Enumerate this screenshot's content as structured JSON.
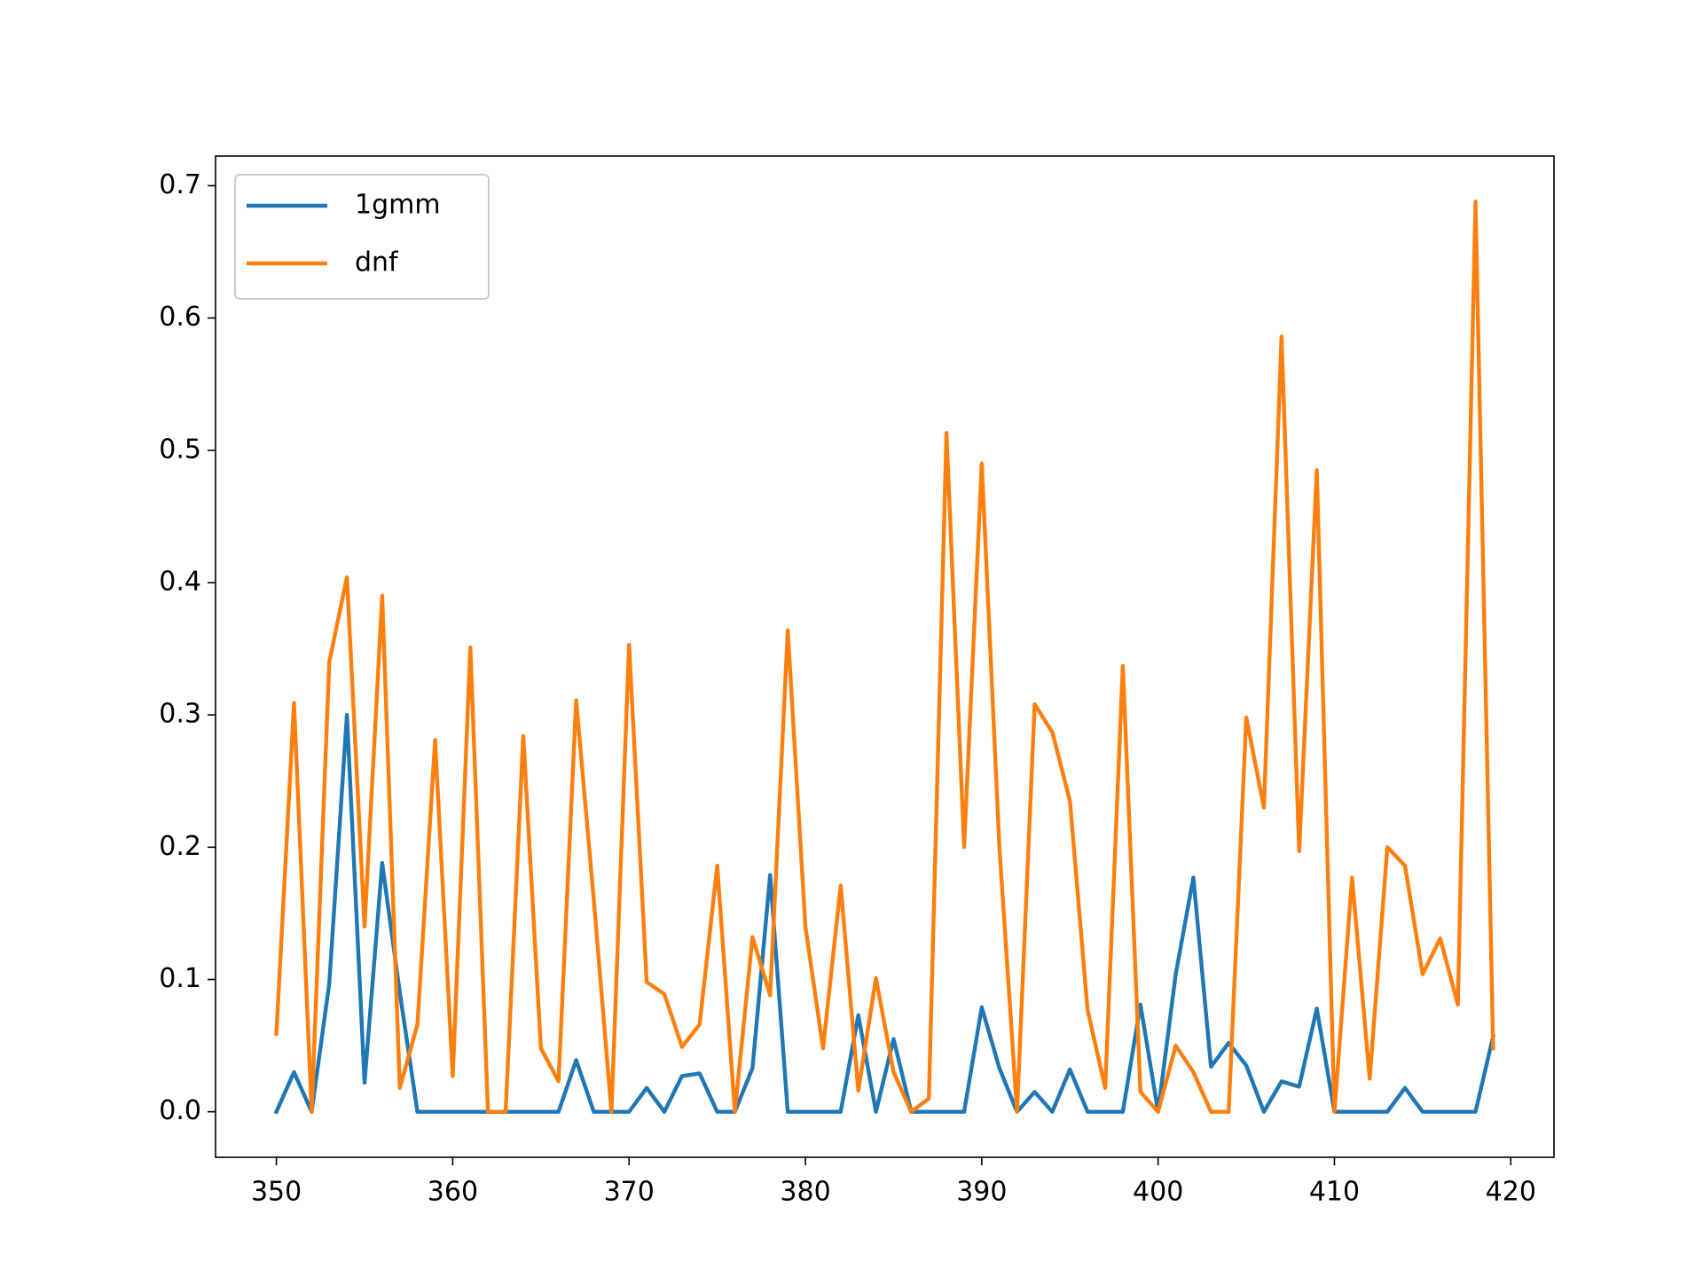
{
  "chart_data": {
    "type": "line",
    "x": [
      350,
      351,
      352,
      353,
      354,
      355,
      356,
      357,
      358,
      359,
      360,
      361,
      362,
      363,
      364,
      365,
      366,
      367,
      368,
      369,
      370,
      371,
      372,
      373,
      374,
      375,
      376,
      377,
      378,
      379,
      380,
      381,
      382,
      383,
      384,
      385,
      386,
      387,
      388,
      389,
      390,
      391,
      392,
      393,
      394,
      395,
      396,
      397,
      398,
      399,
      400,
      401,
      402,
      403,
      404,
      405,
      406,
      407,
      408,
      409,
      410,
      411,
      412,
      413,
      414,
      415,
      416,
      417,
      418,
      419
    ],
    "series": [
      {
        "name": "1gmm",
        "color": "#1f77b4",
        "values": [
          0,
          0.03,
          0,
          0.097,
          0.3,
          0.022,
          0.188,
          0.09,
          0,
          0,
          0,
          0,
          0,
          0,
          0,
          0,
          0,
          0.039,
          0,
          0,
          0,
          0.018,
          0,
          0.027,
          0.029,
          0,
          0,
          0.033,
          0.179,
          0,
          0,
          0,
          0,
          0.073,
          0,
          0.055,
          0,
          0,
          0,
          0,
          0.079,
          0.033,
          0,
          0.015,
          0,
          0.032,
          0,
          0,
          0,
          0.081,
          0,
          0.104,
          0.177,
          0.034,
          0.052,
          0.035,
          0,
          0.023,
          0.019,
          0.078,
          0,
          0,
          0,
          0,
          0.018,
          0,
          0,
          0,
          0,
          0.057
        ]
      },
      {
        "name": "dnf",
        "color": "#ff7f0e",
        "values": [
          0.059,
          0.309,
          0,
          0.34,
          0.404,
          0.14,
          0.39,
          0.018,
          0.066,
          0.281,
          0.027,
          0.351,
          0,
          0,
          0.284,
          0.048,
          0.023,
          0.311,
          0.16,
          0,
          0.353,
          0.098,
          0.089,
          0.049,
          0.066,
          0.186,
          0,
          0.132,
          0.088,
          0.364,
          0.14,
          0.048,
          0.171,
          0.016,
          0.101,
          0.03,
          0,
          0.01,
          0.513,
          0.2,
          0.49,
          0.2,
          0,
          0.308,
          0.287,
          0.235,
          0.077,
          0.018,
          0.337,
          0.015,
          0,
          0.05,
          0.03,
          0,
          0,
          0.298,
          0.23,
          0.586,
          0.197,
          0.485,
          0,
          0.177,
          0.025,
          0.2,
          0.186,
          0.104,
          0.131,
          0.081,
          0.688,
          0.048
        ]
      }
    ],
    "xlim": [
      346.55,
      422.45
    ],
    "xticks": [
      350,
      360,
      370,
      380,
      390,
      400,
      410,
      420
    ],
    "ylim": [
      -0.0344,
      0.7224
    ],
    "yticks": [
      {
        "value": 0,
        "label": "0.0"
      },
      0.1,
      0.2,
      0.3,
      0.4,
      0.5,
      0.6,
      0.7
    ],
    "legend": "upper left"
  }
}
